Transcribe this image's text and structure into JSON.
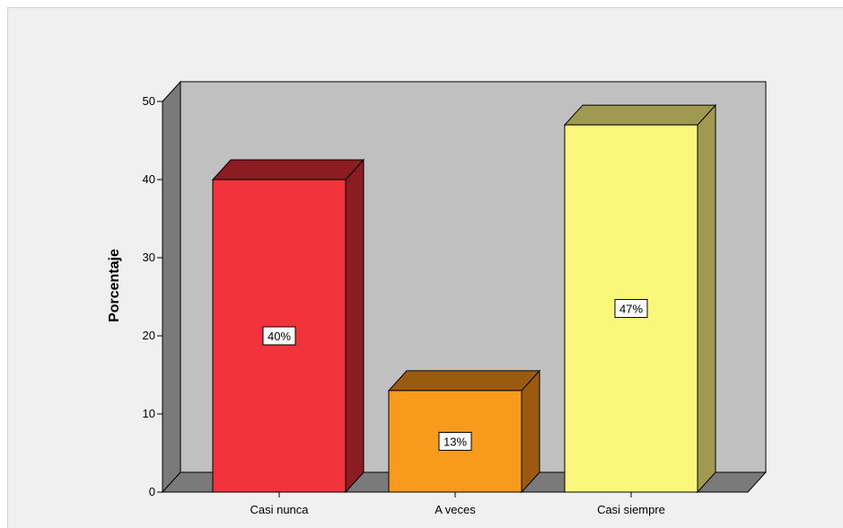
{
  "chart_data": {
    "type": "bar",
    "categories": [
      "Casi nunca",
      "A veces",
      "Casi siempre"
    ],
    "values": [
      40,
      13,
      47
    ],
    "data_labels": [
      "40%",
      "13%",
      "47%"
    ],
    "title": "",
    "xlabel": "",
    "ylabel": "Porcentaje",
    "ylim": [
      0,
      50
    ],
    "yticks": [
      0,
      10,
      20,
      30,
      40,
      50
    ],
    "style": "3d",
    "grid": false,
    "colors": {
      "bar_faces": [
        "#f2333b",
        "#f89a1c",
        "#faf87a"
      ],
      "bar_sides": [
        "#8b1c22",
        "#9a5a10",
        "#a09a50"
      ],
      "bar_tops": [
        "#8b1c22",
        "#9a5a10",
        "#a09a50"
      ],
      "plot_back": "#c0c0c0",
      "plot_side": "#7a7a7a",
      "plot_floor": "#7a7a7a",
      "frame": "#f0f0f0"
    }
  }
}
